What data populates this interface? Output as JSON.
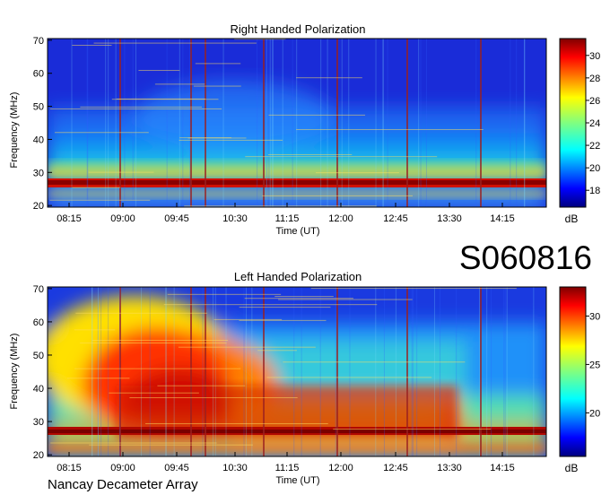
{
  "observation_id": "S060816",
  "instrument": "Nancay Decameter Array",
  "colors": {
    "colormap": [
      "#00007f",
      "#0000ff",
      "#0080ff",
      "#00ffff",
      "#80ff80",
      "#ffff00",
      "#ff8000",
      "#ff0000",
      "#7f0000"
    ]
  },
  "chart_data": [
    {
      "type": "heatmap",
      "title": "Right Handed Polarization",
      "xlabel": "Time (UT)",
      "ylabel": "Frequency (MHz)",
      "x_ticks": [
        "08:15",
        "09:00",
        "09:45",
        "10:30",
        "11:15",
        "12:00",
        "12:45",
        "13:30",
        "14:15"
      ],
      "y_ticks": [
        20,
        30,
        40,
        50,
        60,
        70
      ],
      "ylim": [
        19.5,
        70.5
      ],
      "colorbar": {
        "label": "dB",
        "range": [
          16.5,
          31.5
        ],
        "ticks": [
          18,
          20,
          22,
          24,
          26,
          28,
          30
        ]
      },
      "features": [
        {
          "desc": "strong interference band",
          "freq_mhz": 27,
          "level_db": 31
        },
        {
          "desc": "elevated emission",
          "freq_mhz": [
            20,
            35
          ],
          "level_db": 24
        }
      ]
    },
    {
      "type": "heatmap",
      "title": "Left Handed Polarization",
      "xlabel": "Time (UT)",
      "ylabel": "Frequency (MHz)",
      "x_ticks": [
        "08:15",
        "09:00",
        "09:45",
        "10:30",
        "11:15",
        "12:00",
        "12:45",
        "13:30",
        "14:15"
      ],
      "y_ticks": [
        20,
        30,
        40,
        50,
        60,
        70
      ],
      "ylim": [
        19.5,
        70.5
      ],
      "colorbar": {
        "label": "dB",
        "range": [
          15.5,
          33
        ],
        "ticks": [
          20,
          25,
          30
        ]
      },
      "features": [
        {
          "desc": "Jovian decametric burst",
          "time": [
            "08:15",
            "10:15"
          ],
          "freq_mhz": [
            22,
            62
          ],
          "level_db": 32
        },
        {
          "desc": "strong interference band",
          "freq_mhz": 27,
          "level_db": 32
        }
      ]
    }
  ]
}
